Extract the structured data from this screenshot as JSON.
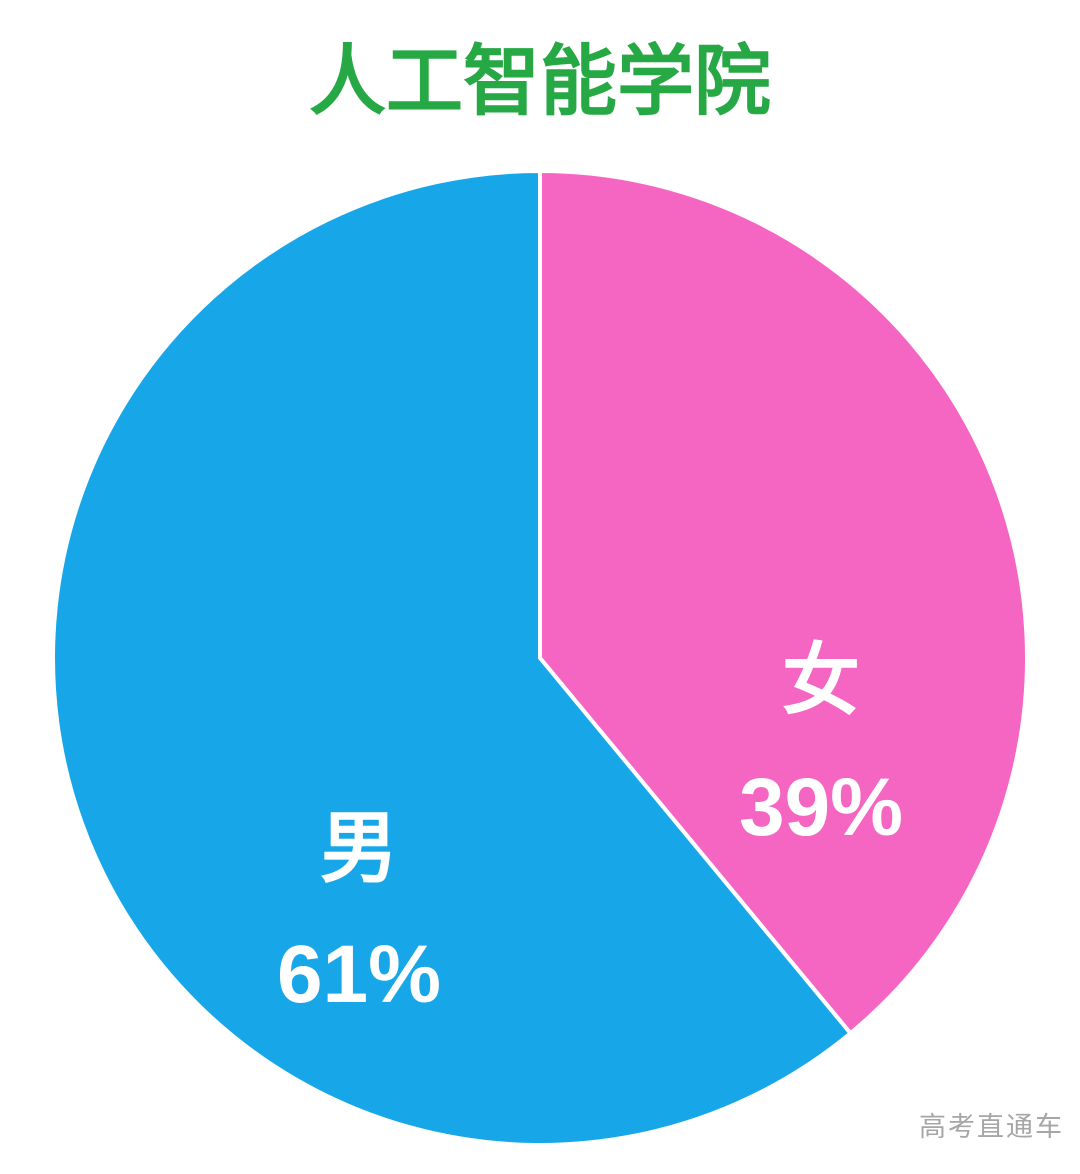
{
  "page": {
    "background": "#ffffff"
  },
  "chart_data": {
    "type": "pie",
    "title": "人工智能学院",
    "title_color": "#26a944",
    "start_angle_deg": 0,
    "direction": "clockwise",
    "slice_border_color": "#ffffff",
    "label_color": "#ffffff",
    "legend_position": "none",
    "slices": [
      {
        "label": "女",
        "value": 39,
        "value_label": "39%",
        "color": "#f565c2"
      },
      {
        "label": "男",
        "value": 61,
        "value_label": "61%",
        "color": "#17a7e8"
      }
    ]
  },
  "watermark": {
    "text": "高考直通车",
    "color": "#a6a6a6"
  }
}
